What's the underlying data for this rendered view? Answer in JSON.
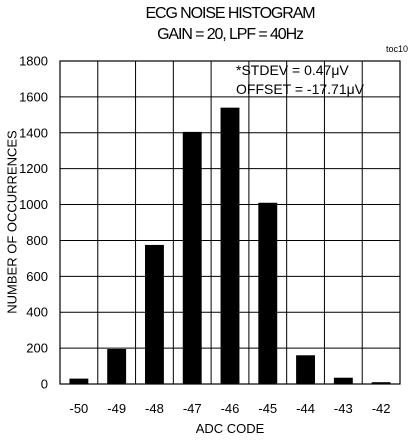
{
  "chart_data": {
    "type": "bar",
    "title": "ECG NOISE HISTOGRAM",
    "subtitle": "GAIN = 20, LPF = 40Hz",
    "note": "toc10",
    "annotations": [
      "*STDEV = 0.47μV",
      "OFFSET = -17.71μV"
    ],
    "xlabel": "ADC CODE",
    "ylabel": "NUMBER OF OCCURRENCES",
    "categories": [
      "-50",
      "-49",
      "-48",
      "-47",
      "-46",
      "-45",
      "-44",
      "-43",
      "-42"
    ],
    "values": [
      30,
      195,
      775,
      1405,
      1540,
      1010,
      160,
      35,
      10
    ],
    "ylim": [
      0,
      1800
    ],
    "yticks": [
      0,
      200,
      400,
      600,
      800,
      1000,
      1200,
      1400,
      1600,
      1800
    ],
    "grid": true,
    "bar_color": "#000000",
    "grid_color": "#000000"
  }
}
